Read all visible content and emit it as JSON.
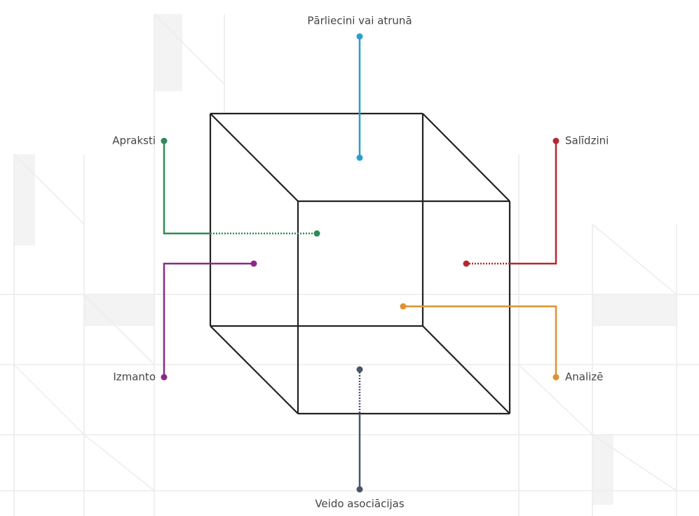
{
  "diagram": {
    "labels": {
      "top": "Pārliecini vai atrunā",
      "upper_left": "Apraksti",
      "upper_right": "Salīdzini",
      "lower_left": "Izmanto",
      "lower_right": "Analizē",
      "bottom": "Veido asociācijas"
    }
  }
}
